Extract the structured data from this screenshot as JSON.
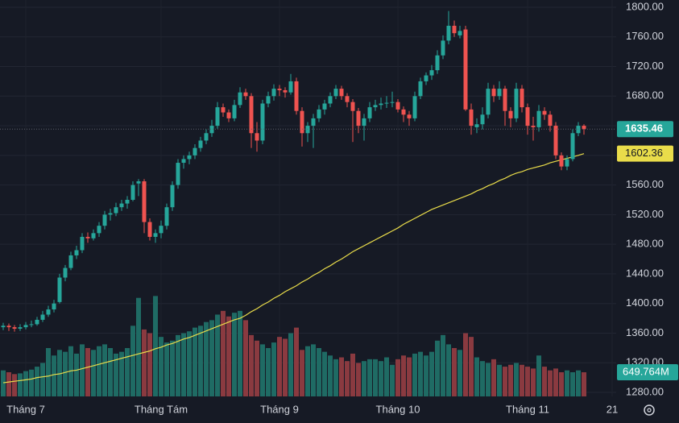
{
  "chart_data": {
    "type": "candlestick",
    "open": [
      1368,
      1370,
      1368,
      1366,
      1368,
      1371,
      1372,
      1378,
      1385,
      1392,
      1402,
      1435,
      1448,
      1465,
      1472,
      1490,
      1488,
      1495,
      1505,
      1520,
      1522,
      1530,
      1535,
      1540,
      1562,
      1565,
      1510,
      1490,
      1495,
      1505,
      1530,
      1560,
      1590,
      1595,
      1600,
      1610,
      1620,
      1630,
      1640,
      1665,
      1658,
      1650,
      1668,
      1685,
      1680,
      1630,
      1620,
      1670,
      1680,
      1690,
      1688,
      1685,
      1700,
      1660,
      1630,
      1640,
      1650,
      1662,
      1670,
      1680,
      1690,
      1680,
      1672,
      1660,
      1640,
      1650,
      1665,
      1668,
      1670,
      1671,
      1672,
      1662,
      1655,
      1650,
      1680,
      1700,
      1708,
      1715,
      1735,
      1755,
      1775,
      1762,
      1770,
      1662,
      1638,
      1642,
      1655,
      1690,
      1680,
      1690,
      1660,
      1650,
      1690,
      1665,
      1640,
      1638,
      1660,
      1655,
      1640,
      1600,
      1585,
      1595,
      1630,
      1640
    ],
    "high": [
      1374,
      1373,
      1371,
      1372,
      1375,
      1377,
      1382,
      1390,
      1397,
      1405,
      1440,
      1452,
      1470,
      1478,
      1495,
      1496,
      1500,
      1510,
      1525,
      1528,
      1536,
      1540,
      1545,
      1565,
      1568,
      1568,
      1515,
      1500,
      1512,
      1535,
      1565,
      1595,
      1600,
      1605,
      1615,
      1625,
      1635,
      1648,
      1672,
      1670,
      1662,
      1675,
      1692,
      1690,
      1684,
      1645,
      1675,
      1686,
      1696,
      1695,
      1692,
      1710,
      1705,
      1665,
      1645,
      1656,
      1668,
      1675,
      1685,
      1695,
      1694,
      1684,
      1676,
      1664,
      1656,
      1672,
      1675,
      1678,
      1680,
      1686,
      1676,
      1666,
      1660,
      1686,
      1705,
      1712,
      1722,
      1742,
      1762,
      1795,
      1782,
      1775,
      1775,
      1670,
      1650,
      1665,
      1698,
      1695,
      1700,
      1694,
      1665,
      1698,
      1695,
      1670,
      1652,
      1668,
      1665,
      1660,
      1645,
      1604,
      1600,
      1635,
      1645,
      1642
    ],
    "low": [
      1364,
      1363,
      1362,
      1363,
      1365,
      1368,
      1370,
      1375,
      1382,
      1388,
      1400,
      1430,
      1445,
      1460,
      1468,
      1482,
      1485,
      1490,
      1500,
      1512,
      1518,
      1525,
      1528,
      1538,
      1545,
      1495,
      1485,
      1482,
      1488,
      1500,
      1525,
      1555,
      1582,
      1588,
      1595,
      1605,
      1615,
      1625,
      1636,
      1652,
      1645,
      1646,
      1664,
      1675,
      1610,
      1605,
      1615,
      1665,
      1674,
      1680,
      1678,
      1682,
      1655,
      1612,
      1618,
      1610,
      1645,
      1655,
      1665,
      1676,
      1675,
      1665,
      1618,
      1630,
      1620,
      1645,
      1660,
      1662,
      1664,
      1665,
      1658,
      1645,
      1640,
      1646,
      1676,
      1695,
      1702,
      1710,
      1730,
      1750,
      1760,
      1758,
      1660,
      1628,
      1630,
      1635,
      1650,
      1672,
      1675,
      1640,
      1638,
      1645,
      1658,
      1628,
      1620,
      1632,
      1648,
      1632,
      1595,
      1580,
      1580,
      1592,
      1626,
      1628
    ],
    "close": [
      1370,
      1368,
      1366,
      1368,
      1371,
      1372,
      1378,
      1385,
      1392,
      1400,
      1435,
      1448,
      1465,
      1472,
      1490,
      1488,
      1495,
      1505,
      1520,
      1522,
      1530,
      1535,
      1540,
      1560,
      1565,
      1510,
      1490,
      1495,
      1505,
      1530,
      1560,
      1590,
      1595,
      1600,
      1610,
      1620,
      1630,
      1640,
      1665,
      1658,
      1650,
      1668,
      1685,
      1680,
      1630,
      1620,
      1670,
      1680,
      1690,
      1688,
      1685,
      1700,
      1660,
      1630,
      1640,
      1650,
      1662,
      1670,
      1680,
      1690,
      1680,
      1672,
      1660,
      1640,
      1650,
      1665,
      1668,
      1670,
      1671,
      1672,
      1662,
      1655,
      1650,
      1680,
      1700,
      1708,
      1715,
      1735,
      1755,
      1775,
      1765,
      1768,
      1662,
      1640,
      1642,
      1655,
      1690,
      1680,
      1690,
      1660,
      1650,
      1690,
      1665,
      1640,
      1638,
      1660,
      1655,
      1640,
      1600,
      1585,
      1595,
      1630,
      1640,
      1635.46
    ],
    "volume": [
      700,
      650,
      600,
      620,
      680,
      720,
      800,
      900,
      1300,
      1100,
      1250,
      1200,
      1350,
      1150,
      1400,
      1300,
      1250,
      1350,
      1400,
      1300,
      1150,
      1200,
      1300,
      1900,
      2650,
      1800,
      1700,
      2700,
      1600,
      1450,
      1500,
      1650,
      1700,
      1750,
      1850,
      1900,
      2000,
      2050,
      2200,
      2300,
      2150,
      2250,
      2300,
      2050,
      1650,
      1500,
      1400,
      1300,
      1450,
      1600,
      1550,
      1700,
      1850,
      1250,
      1350,
      1400,
      1300,
      1200,
      1100,
      1000,
      1050,
      950,
      1150,
      900,
      950,
      1000,
      1000,
      950,
      1050,
      850,
      1000,
      1100,
      1050,
      1150,
      1200,
      1100,
      1200,
      1500,
      1650,
      1400,
      1300,
      1250,
      1700,
      1600,
      1050,
      950,
      900,
      1000,
      850,
      800,
      850,
      900,
      850,
      800,
      750,
      1100,
      800,
      700,
      750,
      650,
      700,
      650,
      700,
      649.764
    ],
    "ma": [
      1293,
      1294,
      1295,
      1296,
      1297,
      1298,
      1300,
      1301,
      1302,
      1304,
      1305,
      1307,
      1309,
      1310,
      1312,
      1314,
      1316,
      1318,
      1320,
      1322,
      1324,
      1326,
      1328,
      1330,
      1332,
      1334,
      1336,
      1339,
      1341,
      1344,
      1346,
      1349,
      1352,
      1354,
      1357,
      1360,
      1363,
      1366,
      1369,
      1372,
      1375,
      1378,
      1380,
      1384,
      1389,
      1393,
      1398,
      1402,
      1407,
      1411,
      1416,
      1420,
      1424,
      1429,
      1433,
      1438,
      1442,
      1447,
      1451,
      1456,
      1460,
      1465,
      1470,
      1474,
      1478,
      1482,
      1486,
      1490,
      1494,
      1498,
      1502,
      1507,
      1511,
      1515,
      1519,
      1523,
      1527,
      1530,
      1533,
      1536,
      1539,
      1542,
      1545,
      1548,
      1552,
      1555,
      1559,
      1562,
      1566,
      1569,
      1573,
      1576,
      1578,
      1581,
      1583,
      1585,
      1587,
      1590,
      1592,
      1594,
      1596,
      1598,
      1600,
      1602.36
    ],
    "last_volume_label": "649.764M",
    "up_color": "#26a69a",
    "down_color": "#ef5350",
    "ma_color": "#e9dc4a",
    "volume_up_color": "#1f6b64",
    "volume_down_color": "#8a3a40",
    "ylim": [
      1280,
      1800
    ],
    "volume_ylim": [
      0,
      10660
    ],
    "yticks": [
      {
        "value": 1280,
        "label": "1280.00"
      },
      {
        "value": 1320,
        "label": "1320.00"
      },
      {
        "value": 1360,
        "label": "1360.00"
      },
      {
        "value": 1400,
        "label": "1400.00"
      },
      {
        "value": 1440,
        "label": "1440.00"
      },
      {
        "value": 1480,
        "label": "1480.00"
      },
      {
        "value": 1520,
        "label": "1520.00"
      },
      {
        "value": 1560,
        "label": "1560.00"
      },
      {
        "value": 1600,
        "label": "1600.00"
      },
      {
        "value": 1640,
        "label": "1640.00"
      },
      {
        "value": 1680,
        "label": "1680.00"
      },
      {
        "value": 1720,
        "label": "1720.00"
      },
      {
        "value": 1760,
        "label": "1760.00"
      },
      {
        "value": 1800,
        "label": "1800.00"
      }
    ],
    "x_labels": [
      {
        "index": 4,
        "label": "Tháng 7"
      },
      {
        "index": 28,
        "label": "Tháng Tám"
      },
      {
        "index": 49,
        "label": "Tháng 9"
      },
      {
        "index": 70,
        "label": "Tháng 10"
      },
      {
        "index": 93,
        "label": "Tháng 11"
      },
      {
        "index": 108,
        "label": "21"
      }
    ],
    "grid": true
  }
}
